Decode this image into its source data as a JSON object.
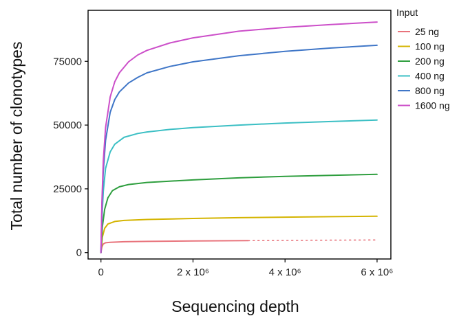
{
  "chart_data": {
    "type": "line",
    "title": "",
    "xlabel": "Sequencing depth",
    "ylabel": "Total number of clonotypes",
    "xlim": [
      -280000,
      6300000
    ],
    "ylim": [
      -2500,
      95000
    ],
    "x_ticks": [
      {
        "value": 0,
        "label": "0"
      },
      {
        "value": 2000000,
        "label": "2 x 10⁶"
      },
      {
        "value": 4000000,
        "label": "4 x 10⁶"
      },
      {
        "value": 6000000,
        "label": "6 x 10⁶"
      }
    ],
    "y_ticks": [
      {
        "value": 0,
        "label": "0"
      },
      {
        "value": 25000,
        "label": "25000"
      },
      {
        "value": 50000,
        "label": "50000"
      },
      {
        "value": 75000,
        "label": "75000"
      }
    ],
    "grid": false,
    "legend": {
      "title": "Input",
      "position": "right"
    },
    "series": [
      {
        "name": "25 ng",
        "color": "#e8737b",
        "points": [
          [
            0,
            0
          ],
          [
            20000,
            2200
          ],
          [
            50000,
            3400
          ],
          [
            100000,
            3850
          ],
          [
            200000,
            4050
          ],
          [
            500000,
            4250
          ],
          [
            1000000,
            4400
          ],
          [
            2000000,
            4550
          ],
          [
            3200000,
            4700
          ]
        ],
        "extrapolated": [
          [
            3200000,
            4700
          ],
          [
            4000000,
            4800
          ],
          [
            5000000,
            4880
          ],
          [
            6000000,
            4950
          ]
        ]
      },
      {
        "name": "100 ng",
        "color": "#d4b400",
        "points": [
          [
            0,
            0
          ],
          [
            30000,
            6000
          ],
          [
            80000,
            9500
          ],
          [
            150000,
            11200
          ],
          [
            300000,
            12200
          ],
          [
            500000,
            12600
          ],
          [
            1000000,
            13000
          ],
          [
            2000000,
            13400
          ],
          [
            3000000,
            13700
          ],
          [
            4000000,
            13900
          ],
          [
            5000000,
            14100
          ],
          [
            6000000,
            14250
          ]
        ],
        "extrapolated": []
      },
      {
        "name": "200 ng",
        "color": "#2e9e3e",
        "points": [
          [
            0,
            0
          ],
          [
            30000,
            10000
          ],
          [
            80000,
            17000
          ],
          [
            150000,
            21500
          ],
          [
            250000,
            24300
          ],
          [
            400000,
            25800
          ],
          [
            600000,
            26700
          ],
          [
            1000000,
            27500
          ],
          [
            2000000,
            28500
          ],
          [
            3000000,
            29300
          ],
          [
            4000000,
            29900
          ],
          [
            5000000,
            30300
          ],
          [
            6000000,
            30700
          ]
        ],
        "extrapolated": []
      },
      {
        "name": "400 ng",
        "color": "#3bbfc4",
        "points": [
          [
            0,
            0
          ],
          [
            20000,
            13000
          ],
          [
            50000,
            24000
          ],
          [
            100000,
            33000
          ],
          [
            200000,
            39500
          ],
          [
            300000,
            42500
          ],
          [
            500000,
            45200
          ],
          [
            800000,
            46700
          ],
          [
            1000000,
            47300
          ],
          [
            1500000,
            48300
          ],
          [
            2000000,
            49000
          ],
          [
            3000000,
            50000
          ],
          [
            4000000,
            50800
          ],
          [
            5000000,
            51400
          ],
          [
            6000000,
            52000
          ]
        ],
        "extrapolated": []
      },
      {
        "name": "800 ng",
        "color": "#3f76c7",
        "points": [
          [
            0,
            0
          ],
          [
            20000,
            18000
          ],
          [
            50000,
            32000
          ],
          [
            100000,
            44000
          ],
          [
            200000,
            55000
          ],
          [
            300000,
            60000
          ],
          [
            400000,
            63000
          ],
          [
            600000,
            66500
          ],
          [
            800000,
            68700
          ],
          [
            1000000,
            70500
          ],
          [
            1500000,
            73000
          ],
          [
            2000000,
            74800
          ],
          [
            3000000,
            77200
          ],
          [
            4000000,
            78900
          ],
          [
            5000000,
            80200
          ],
          [
            6000000,
            81300
          ]
        ],
        "extrapolated": []
      },
      {
        "name": "1600 ng",
        "color": "#cc4fc9",
        "points": [
          [
            0,
            0
          ],
          [
            20000,
            20000
          ],
          [
            50000,
            36000
          ],
          [
            100000,
            49000
          ],
          [
            200000,
            61000
          ],
          [
            300000,
            67000
          ],
          [
            400000,
            70500
          ],
          [
            600000,
            74800
          ],
          [
            800000,
            77500
          ],
          [
            1000000,
            79300
          ],
          [
            1500000,
            82200
          ],
          [
            2000000,
            84200
          ],
          [
            3000000,
            86800
          ],
          [
            4000000,
            88300
          ],
          [
            5000000,
            89400
          ],
          [
            6000000,
            90400
          ]
        ],
        "extrapolated": []
      }
    ]
  }
}
